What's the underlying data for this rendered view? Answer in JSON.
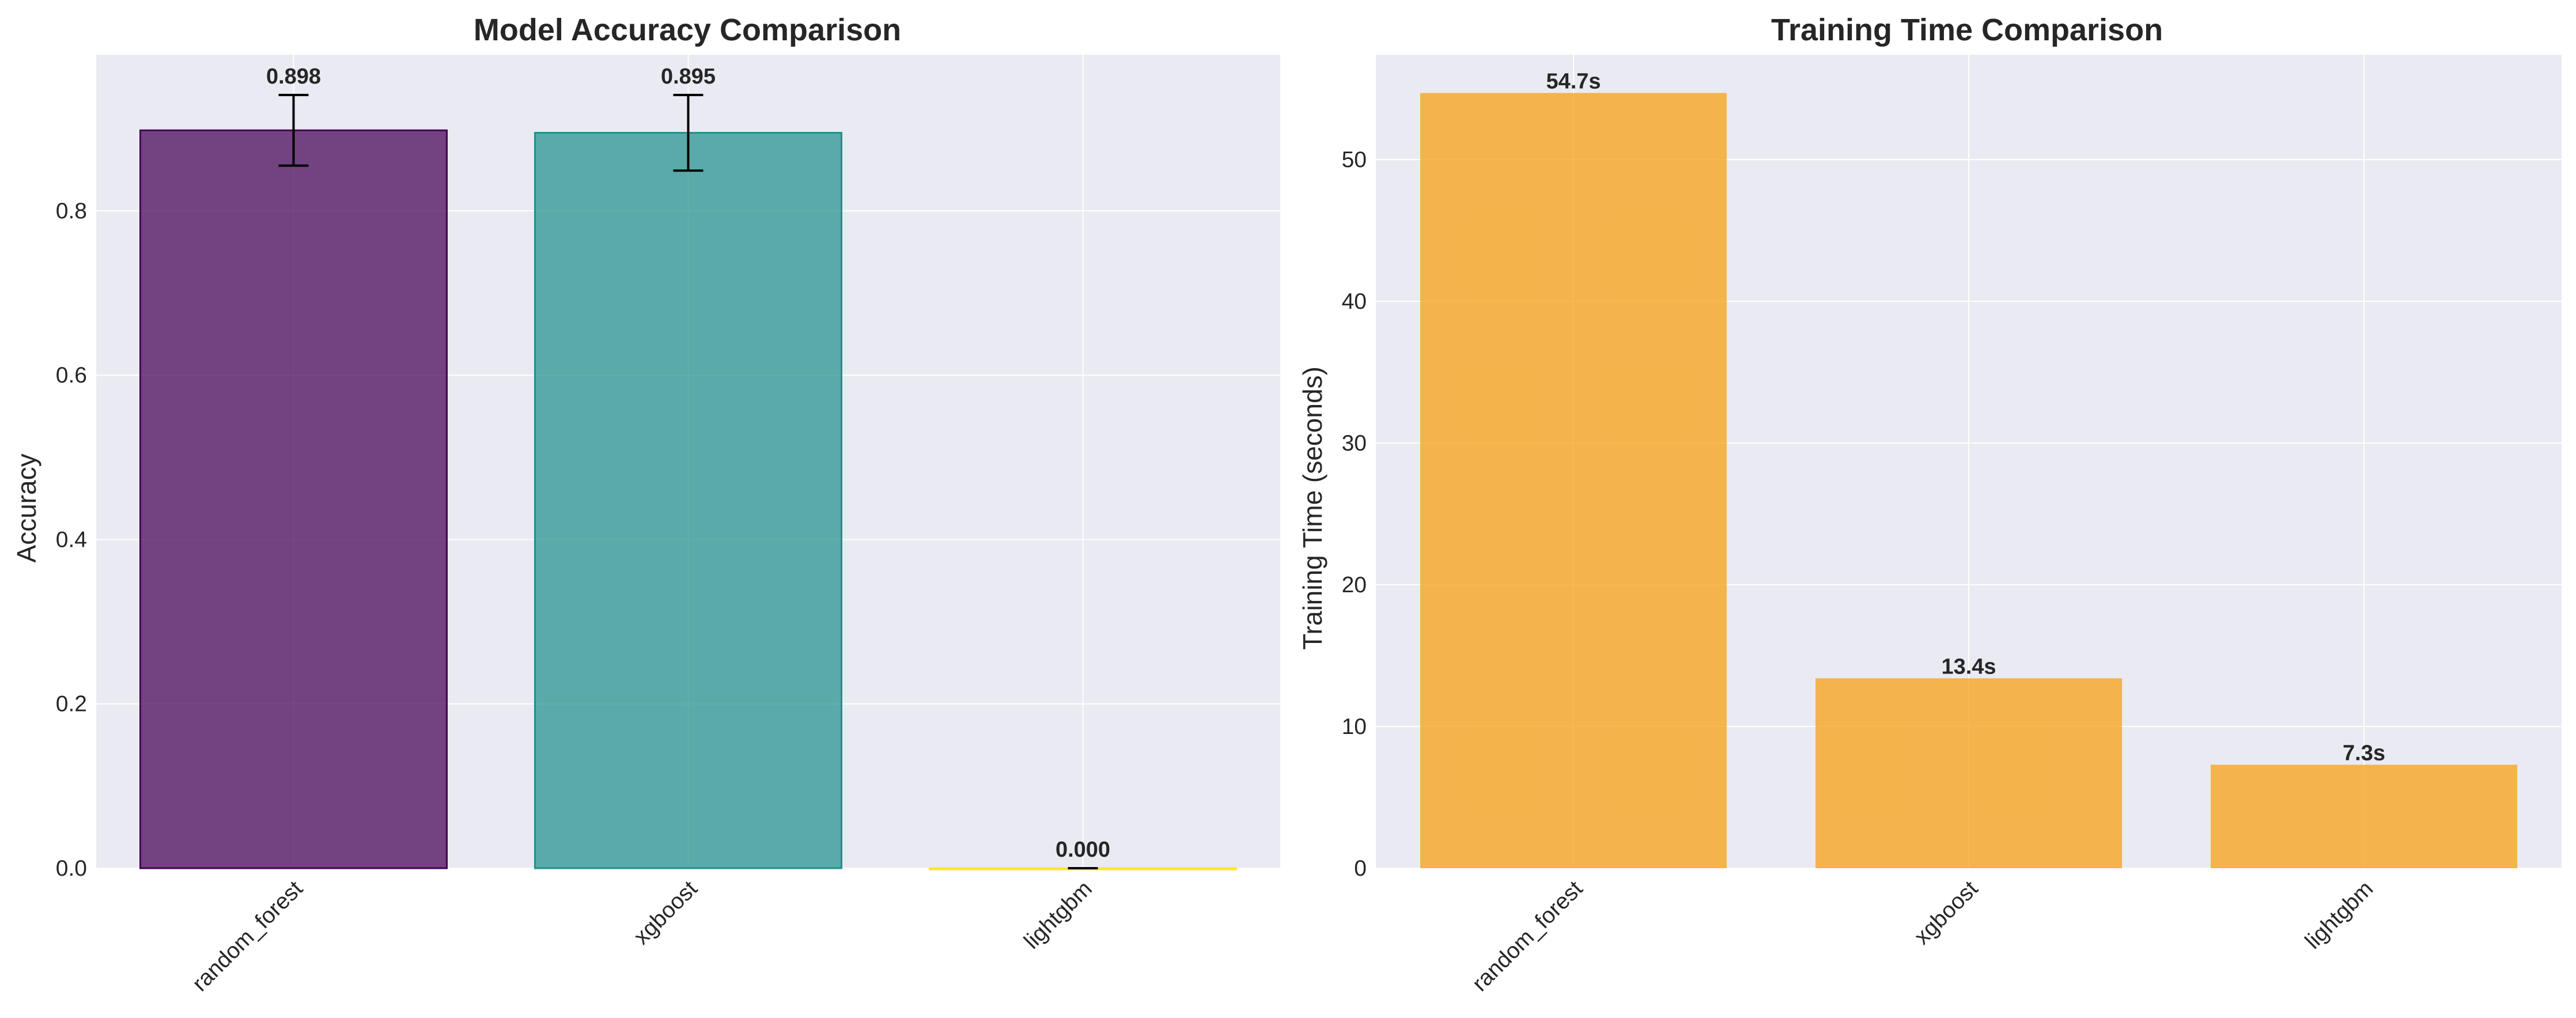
{
  "colors": {
    "axes_bg": "#eaeaf2",
    "grid": "#ffffff",
    "bar_random_forest": "#440154",
    "bar_xgboost": "#21918c",
    "bar_lightgbm": "#fde725",
    "bar_time": "#f5a623"
  },
  "chart_data": [
    {
      "type": "bar",
      "title": "Model Accuracy Comparison",
      "xlabel": "",
      "ylabel": "Accuracy",
      "categories": [
        "random_forest",
        "xgboost",
        "lightgbm"
      ],
      "values": [
        0.898,
        0.895,
        0.0
      ],
      "error": [
        0.043,
        0.046,
        0.0
      ],
      "data_labels": [
        "0.898",
        "0.895",
        "0.000"
      ],
      "ylim": [
        0,
        0.99
      ],
      "yticks": [
        0.0,
        0.2,
        0.4,
        0.6,
        0.8
      ],
      "ytick_labels": [
        "0.0",
        "0.2",
        "0.4",
        "0.6",
        "0.8"
      ],
      "grid": true,
      "bar_colors": [
        "#440154",
        "#21918c",
        "#fde725"
      ]
    },
    {
      "type": "bar",
      "title": "Training Time Comparison",
      "xlabel": "",
      "ylabel": "Training Time (seconds)",
      "categories": [
        "random_forest",
        "xgboost",
        "lightgbm"
      ],
      "values": [
        54.7,
        13.4,
        7.3
      ],
      "data_labels": [
        "54.7s",
        "13.4s",
        "7.3s"
      ],
      "ylim": [
        0,
        57.4
      ],
      "yticks": [
        0,
        10,
        20,
        30,
        40,
        50
      ],
      "ytick_labels": [
        "0",
        "10",
        "20",
        "30",
        "40",
        "50"
      ],
      "grid": true,
      "bar_colors": [
        "#f5a623",
        "#f5a623",
        "#f5a623"
      ]
    }
  ]
}
